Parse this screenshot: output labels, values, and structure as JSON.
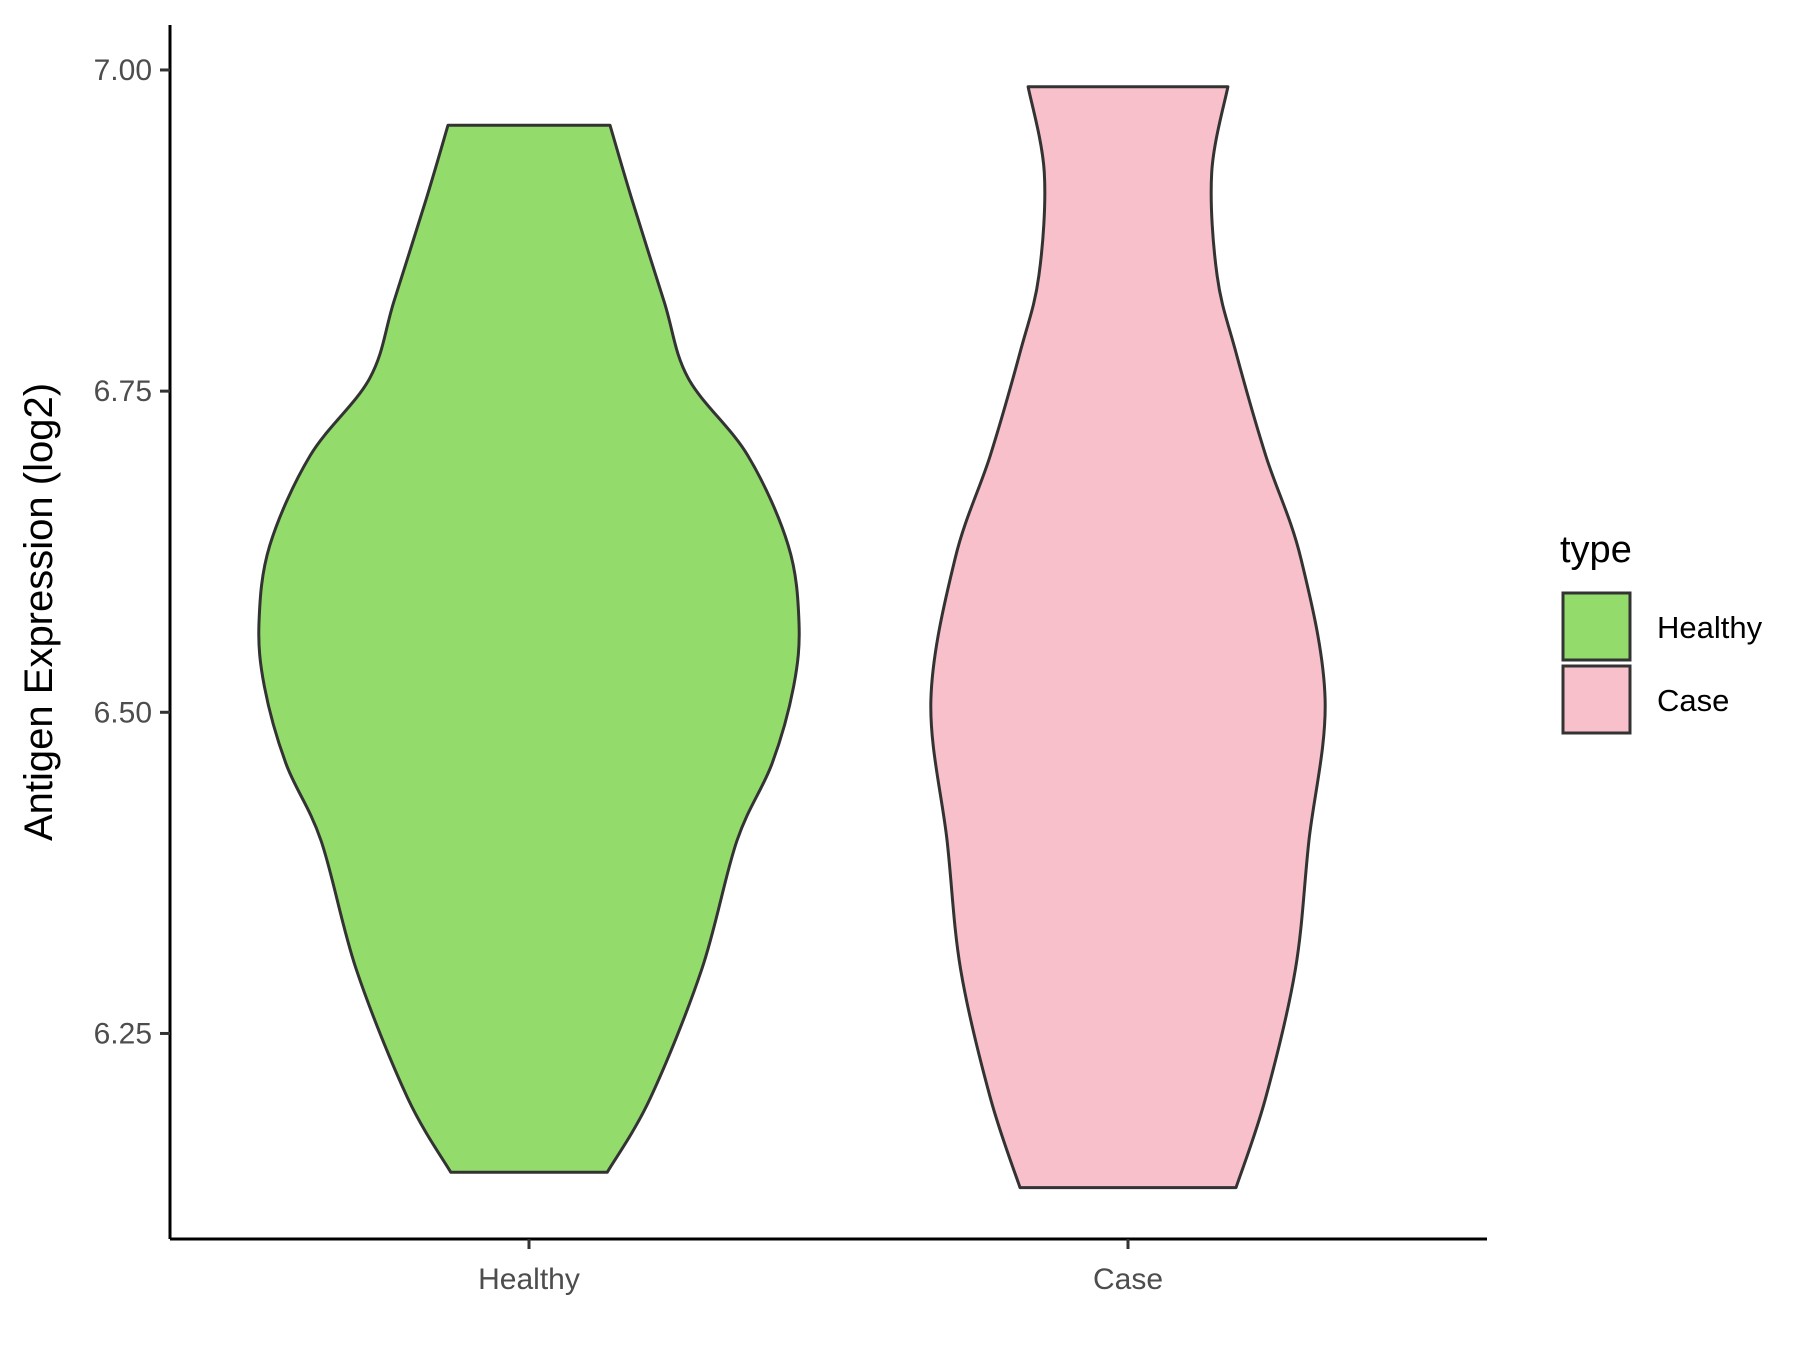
{
  "chart_data": {
    "type": "violin",
    "title": "",
    "xlabel": "",
    "ylabel": "Antigen Expression (log2)",
    "ylim": [
      6.09,
      7.035
    ],
    "yticks": [
      6.25,
      6.5,
      6.75,
      7.0
    ],
    "ytick_labels": [
      "6.25",
      "6.50",
      "6.75",
      "7.00"
    ],
    "categories": [
      "Healthy",
      "Case"
    ],
    "grid": false,
    "legend": {
      "title": "type",
      "placement": "right",
      "entries": [
        "Healthy",
        "Case"
      ]
    },
    "series": [
      {
        "name": "Healthy",
        "color": "#93dc6b",
        "min": 6.142,
        "max": 6.957,
        "density_profile": [
          {
            "y": 6.142,
            "w": 0.29
          },
          {
            "y": 6.2,
            "w": 0.45
          },
          {
            "y": 6.3,
            "w": 0.64
          },
          {
            "y": 6.4,
            "w": 0.77
          },
          {
            "y": 6.46,
            "w": 0.9
          },
          {
            "y": 6.52,
            "w": 0.98
          },
          {
            "y": 6.57,
            "w": 1.0
          },
          {
            "y": 6.63,
            "w": 0.96
          },
          {
            "y": 6.7,
            "w": 0.81
          },
          {
            "y": 6.76,
            "w": 0.59
          },
          {
            "y": 6.82,
            "w": 0.5
          },
          {
            "y": 6.9,
            "w": 0.38
          },
          {
            "y": 6.957,
            "w": 0.3
          }
        ]
      },
      {
        "name": "Case",
        "color": "#f8c0cb",
        "min": 6.13,
        "max": 6.987,
        "density_profile": [
          {
            "y": 6.13,
            "w": 0.4
          },
          {
            "y": 6.2,
            "w": 0.51
          },
          {
            "y": 6.3,
            "w": 0.62
          },
          {
            "y": 6.4,
            "w": 0.67
          },
          {
            "y": 6.51,
            "w": 0.73
          },
          {
            "y": 6.62,
            "w": 0.64
          },
          {
            "y": 6.7,
            "w": 0.51
          },
          {
            "y": 6.78,
            "w": 0.4
          },
          {
            "y": 6.84,
            "w": 0.33
          },
          {
            "y": 6.92,
            "w": 0.31
          },
          {
            "y": 6.987,
            "w": 0.37
          }
        ]
      }
    ]
  }
}
